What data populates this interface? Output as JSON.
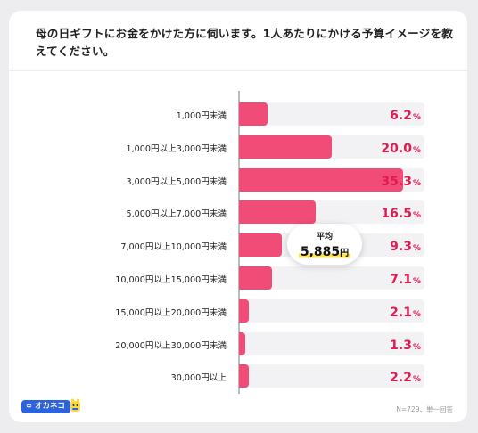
{
  "title": "母の日ギフトにお金をかけた方に伺います。1人あたりにかける予算イメージを教えてください。",
  "chart_data": {
    "type": "bar",
    "orientation": "horizontal",
    "categories": [
      "1,000円未満",
      "1,000円以上3,000円未満",
      "3,000円以上5,000円未満",
      "5,000円以上7,000円未満",
      "7,000円以上10,000円未満",
      "10,000円以上15,000円未満",
      "15,000円以上20,000円未満",
      "20,000円以上30,000円未満",
      "30,000円以上"
    ],
    "values": [
      6.2,
      20.0,
      35.3,
      16.5,
      9.3,
      7.1,
      2.1,
      1.3,
      2.2
    ],
    "value_labels": [
      "6.2",
      "20.0",
      "35.3",
      "16.5",
      "9.3",
      "7.1",
      "2.1",
      "1.3",
      "2.2"
    ],
    "value_unit": "%",
    "xlim": [
      0,
      40
    ],
    "colors": {
      "bar": "#f04c77",
      "track": "#f2f2f4",
      "value_text": "#e0194f",
      "highlight": "#ffe14d"
    }
  },
  "average": {
    "label": "平均",
    "value": "5,885",
    "unit": "円"
  },
  "logo": {
    "text": "∞ オカネコ",
    "color": "#2c63d8"
  },
  "note": "N=729、単一回答"
}
